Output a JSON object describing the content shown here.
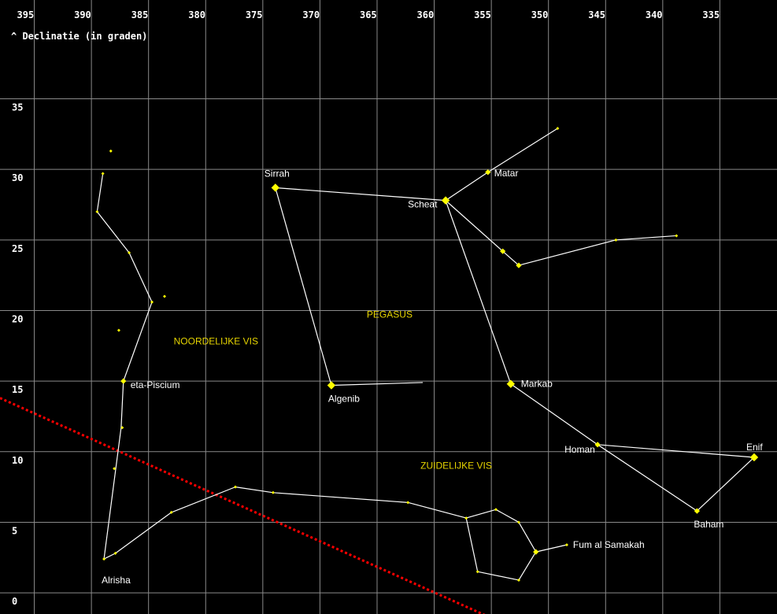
{
  "chart_data": {
    "type": "scatter",
    "xlabel": "",
    "ylabel": "Declinatie (in graden)",
    "ylabel_prefix": "^",
    "x_reversed": true,
    "xlim": [
      398,
      330
    ],
    "ylim": [
      -1.5,
      42
    ],
    "x_ticks": [
      395,
      390,
      385,
      380,
      375,
      370,
      365,
      360,
      355,
      350,
      345,
      340,
      335
    ],
    "y_ticks": [
      0,
      5,
      10,
      15,
      20,
      25,
      30,
      35
    ],
    "grid": true,
    "colors": {
      "background": "#000000",
      "grid": "#8a8a8a",
      "star": "#ffff00",
      "line": "#ffffff",
      "constellation_label": "#e6d400",
      "ecliptic": "#ff0000"
    },
    "constellation_labels": [
      {
        "text": "PEGASUS",
        "x": 365.9,
        "y": 19.5
      },
      {
        "text": "NOORDELIJKE VIS",
        "x": 382.8,
        "y": 17.6
      },
      {
        "text": "ZUIDELIJKE VIS",
        "x": 361.2,
        "y": 8.8
      }
    ],
    "stars": [
      {
        "name": "Sirrah",
        "x": 373.9,
        "y": 28.7,
        "size": "large"
      },
      {
        "name": "Scheat",
        "x": 359.0,
        "y": 27.8,
        "size": "large"
      },
      {
        "name": "Matar",
        "x": 355.3,
        "y": 29.8,
        "size": "medium"
      },
      {
        "name": "",
        "x": 349.2,
        "y": 32.9,
        "size": "small"
      },
      {
        "name": "",
        "x": 354.0,
        "y": 24.2,
        "size": "medium"
      },
      {
        "name": "",
        "x": 352.6,
        "y": 23.2,
        "size": "medium"
      },
      {
        "name": "",
        "x": 344.1,
        "y": 25.0,
        "size": "small"
      },
      {
        "name": "",
        "x": 338.8,
        "y": 25.3,
        "size": "small"
      },
      {
        "name": "Markab",
        "x": 353.3,
        "y": 14.8,
        "size": "large"
      },
      {
        "name": "Algenib",
        "x": 369.0,
        "y": 14.7,
        "size": "large"
      },
      {
        "name": "Homan",
        "x": 345.7,
        "y": 10.5,
        "size": "medium"
      },
      {
        "name": "Enif",
        "x": 332.0,
        "y": 9.6,
        "size": "large"
      },
      {
        "name": "Baham",
        "x": 337.0,
        "y": 5.8,
        "size": "medium"
      },
      {
        "name": "eta-Piscium",
        "x": 387.2,
        "y": 15.0,
        "size": "medium"
      },
      {
        "name": "",
        "x": 388.3,
        "y": 31.3,
        "size": "small"
      },
      {
        "name": "",
        "x": 389.0,
        "y": 29.7,
        "size": "small"
      },
      {
        "name": "",
        "x": 389.5,
        "y": 27.0,
        "size": "small"
      },
      {
        "name": "",
        "x": 386.7,
        "y": 24.1,
        "size": "small"
      },
      {
        "name": "",
        "x": 384.7,
        "y": 20.6,
        "size": "small"
      },
      {
        "name": "",
        "x": 383.6,
        "y": 21.0,
        "size": "small"
      },
      {
        "name": "",
        "x": 387.6,
        "y": 18.6,
        "size": "small"
      },
      {
        "name": "",
        "x": 387.3,
        "y": 11.7,
        "size": "small"
      },
      {
        "name": "",
        "x": 388.0,
        "y": 8.8,
        "size": "small"
      },
      {
        "name": "Alrisha",
        "x": 388.9,
        "y": 2.4,
        "size": "small"
      },
      {
        "name": "",
        "x": 387.9,
        "y": 2.8,
        "size": "small"
      },
      {
        "name": "",
        "x": 383.0,
        "y": 5.7,
        "size": "small"
      },
      {
        "name": "",
        "x": 377.4,
        "y": 7.5,
        "size": "small"
      },
      {
        "name": "",
        "x": 374.1,
        "y": 7.1,
        "size": "small"
      },
      {
        "name": "",
        "x": 362.3,
        "y": 6.4,
        "size": "small"
      },
      {
        "name": "",
        "x": 357.2,
        "y": 5.3,
        "size": "small"
      },
      {
        "name": "",
        "x": 354.6,
        "y": 5.9,
        "size": "small"
      },
      {
        "name": "",
        "x": 352.6,
        "y": 5.0,
        "size": "small"
      },
      {
        "name": "Fum al Samakah",
        "x": 348.4,
        "y": 3.4,
        "size": "small"
      },
      {
        "name": "",
        "x": 351.1,
        "y": 2.9,
        "size": "medium"
      },
      {
        "name": "",
        "x": 356.2,
        "y": 1.5,
        "size": "small"
      },
      {
        "name": "",
        "x": 352.6,
        "y": 0.9,
        "size": "small"
      }
    ],
    "lines": [
      {
        "from": [
          373.9,
          28.7
        ],
        "to": [
          359.0,
          27.8
        ]
      },
      {
        "from": [
          373.9,
          28.7
        ],
        "to": [
          369.0,
          14.7
        ]
      },
      {
        "from": [
          369.0,
          14.7
        ],
        "to": [
          361.0,
          14.9
        ]
      },
      {
        "from": [
          359.0,
          27.8
        ],
        "to": [
          353.3,
          14.8
        ]
      },
      {
        "from": [
          359.0,
          27.8
        ],
        "to": [
          355.3,
          29.8
        ]
      },
      {
        "from": [
          355.3,
          29.8
        ],
        "to": [
          349.2,
          32.9
        ]
      },
      {
        "from": [
          359.0,
          27.8
        ],
        "to": [
          354.0,
          24.2
        ]
      },
      {
        "from": [
          354.0,
          24.2
        ],
        "to": [
          352.6,
          23.2
        ]
      },
      {
        "from": [
          352.6,
          23.2
        ],
        "to": [
          344.1,
          25.0
        ]
      },
      {
        "from": [
          344.1,
          25.0
        ],
        "to": [
          338.8,
          25.3
        ]
      },
      {
        "from": [
          353.3,
          14.8
        ],
        "to": [
          345.7,
          10.5
        ]
      },
      {
        "from": [
          345.7,
          10.5
        ],
        "to": [
          337.0,
          5.8
        ]
      },
      {
        "from": [
          337.0,
          5.8
        ],
        "to": [
          332.0,
          9.6
        ]
      },
      {
        "from": [
          345.7,
          10.5
        ],
        "to": [
          332.0,
          9.6
        ]
      },
      {
        "from": [
          389.0,
          29.7
        ],
        "to": [
          389.5,
          27.0
        ]
      },
      {
        "from": [
          389.5,
          27.0
        ],
        "to": [
          386.7,
          24.1
        ]
      },
      {
        "from": [
          386.7,
          24.1
        ],
        "to": [
          384.7,
          20.6
        ]
      },
      {
        "from": [
          384.7,
          20.6
        ],
        "to": [
          387.2,
          15.0
        ]
      },
      {
        "from": [
          387.2,
          15.0
        ],
        "to": [
          387.4,
          11.7
        ]
      },
      {
        "from": [
          387.4,
          11.7
        ],
        "to": [
          388.9,
          2.4
        ]
      },
      {
        "from": [
          388.9,
          2.4
        ],
        "to": [
          387.9,
          2.8
        ]
      },
      {
        "from": [
          387.9,
          2.8
        ],
        "to": [
          383.0,
          5.7
        ]
      },
      {
        "from": [
          383.0,
          5.7
        ],
        "to": [
          377.4,
          7.5
        ]
      },
      {
        "from": [
          377.4,
          7.5
        ],
        "to": [
          374.1,
          7.1
        ]
      },
      {
        "from": [
          374.1,
          7.1
        ],
        "to": [
          362.3,
          6.4
        ]
      },
      {
        "from": [
          362.3,
          6.4
        ],
        "to": [
          357.2,
          5.3
        ]
      },
      {
        "from": [
          357.2,
          5.3
        ],
        "to": [
          354.6,
          5.9
        ]
      },
      {
        "from": [
          354.6,
          5.9
        ],
        "to": [
          352.6,
          5.0
        ]
      },
      {
        "from": [
          352.6,
          5.0
        ],
        "to": [
          351.1,
          2.9
        ]
      },
      {
        "from": [
          351.1,
          2.9
        ],
        "to": [
          348.4,
          3.4
        ]
      },
      {
        "from": [
          351.1,
          2.9
        ],
        "to": [
          352.6,
          0.9
        ]
      },
      {
        "from": [
          352.6,
          0.9
        ],
        "to": [
          356.2,
          1.5
        ]
      },
      {
        "from": [
          356.2,
          1.5
        ],
        "to": [
          357.2,
          5.3
        ]
      }
    ],
    "ecliptic": {
      "from": [
        398,
        13.8
      ],
      "to": [
        355.5,
        -1.6
      ]
    }
  }
}
